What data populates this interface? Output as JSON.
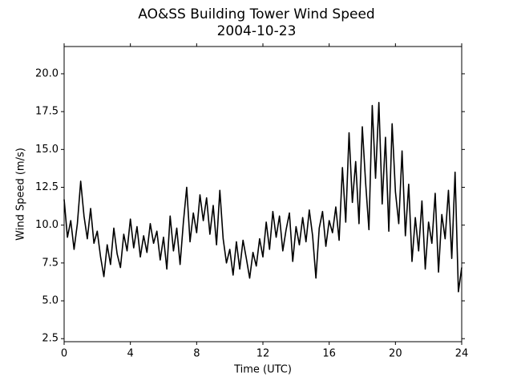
{
  "chart_data": {
    "type": "line",
    "title": "AO&SS Building Tower Wind Speed",
    "subtitle": "2004-10-23",
    "x_label": "Time (UTC)",
    "y_label": "Wind Speed (m/s)",
    "xlim": [
      0,
      24
    ],
    "xticks": [
      0,
      4,
      8,
      12,
      16,
      20,
      24
    ],
    "ylim": [
      2.3,
      21.8
    ],
    "yticks": [
      2.5,
      {
        "value": 5,
        "label": "5.0"
      },
      7.5,
      {
        "value": 10,
        "label": "10.0"
      },
      12.5,
      {
        "value": 15,
        "label": "15.0"
      },
      17.5,
      {
        "value": 20,
        "label": "20.0"
      }
    ],
    "grid": false,
    "color": "#000000",
    "x": [
      0,
      0.2,
      0.4,
      0.6,
      0.8,
      1,
      1.2,
      1.4,
      1.6,
      1.8,
      2,
      2.2,
      2.4,
      2.6,
      2.8,
      3,
      3.2,
      3.4,
      3.6,
      3.8,
      4,
      4.2,
      4.4,
      4.6,
      4.8,
      5,
      5.2,
      5.4,
      5.6,
      5.8,
      6,
      6.2,
      6.4,
      6.6,
      6.8,
      7,
      7.2,
      7.4,
      7.6,
      7.8,
      8,
      8.2,
      8.4,
      8.6,
      8.8,
      9,
      9.2,
      9.4,
      9.6,
      9.8,
      10,
      10.2,
      10.4,
      10.6,
      10.8,
      11,
      11.2,
      11.4,
      11.6,
      11.8,
      12,
      12.2,
      12.4,
      12.6,
      12.8,
      13,
      13.2,
      13.4,
      13.6,
      13.8,
      14,
      14.2,
      14.4,
      14.6,
      14.8,
      15,
      15.2,
      15.4,
      15.6,
      15.8,
      16,
      16.2,
      16.4,
      16.6,
      16.8,
      17,
      17.2,
      17.4,
      17.6,
      17.8,
      18,
      18.2,
      18.4,
      18.6,
      18.8,
      19,
      19.2,
      19.4,
      19.6,
      19.8,
      20,
      20.2,
      20.4,
      20.6,
      20.8,
      21,
      21.2,
      21.4,
      21.6,
      21.8,
      22,
      22.2,
      22.4,
      22.6,
      22.8,
      23,
      23.2,
      23.4,
      23.6,
      23.8,
      24
    ],
    "values": [
      11.7,
      9.2,
      10.3,
      8.4,
      10.1,
      12.9,
      10.6,
      9.1,
      11.1,
      8.8,
      9.6,
      7.9,
      6.6,
      8.7,
      7.4,
      9.8,
      8.1,
      7.2,
      9.4,
      8.3,
      10.4,
      8.5,
      9.9,
      7.9,
      9.3,
      8.2,
      10.1,
      8.8,
      9.6,
      7.7,
      9.2,
      7.1,
      10.6,
      8.3,
      9.8,
      7.4,
      10.2,
      12.5,
      8.9,
      10.8,
      9.5,
      12.0,
      10.3,
      11.8,
      9.4,
      11.3,
      8.7,
      12.3,
      9.1,
      7.5,
      8.4,
      6.7,
      8.9,
      7.1,
      9.0,
      7.8,
      6.5,
      8.2,
      7.3,
      9.1,
      7.9,
      10.2,
      8.4,
      10.9,
      9.2,
      10.6,
      8.3,
      9.7,
      10.8,
      7.6,
      9.9,
      8.7,
      10.5,
      8.9,
      11.0,
      9.3,
      6.5,
      9.8,
      10.9,
      8.6,
      10.3,
      9.5,
      11.2,
      9.0,
      13.8,
      10.2,
      16.1,
      11.5,
      14.2,
      10.1,
      16.5,
      12.8,
      9.7,
      17.9,
      13.1,
      18.1,
      11.4,
      15.8,
      9.6,
      16.7,
      12.2,
      10.1,
      14.9,
      9.3,
      12.7,
      7.6,
      10.5,
      8.3,
      11.6,
      7.1,
      10.2,
      8.8,
      12.1,
      6.9,
      10.7,
      9.1,
      12.3,
      7.8,
      13.5,
      5.6,
      7.2
    ]
  }
}
